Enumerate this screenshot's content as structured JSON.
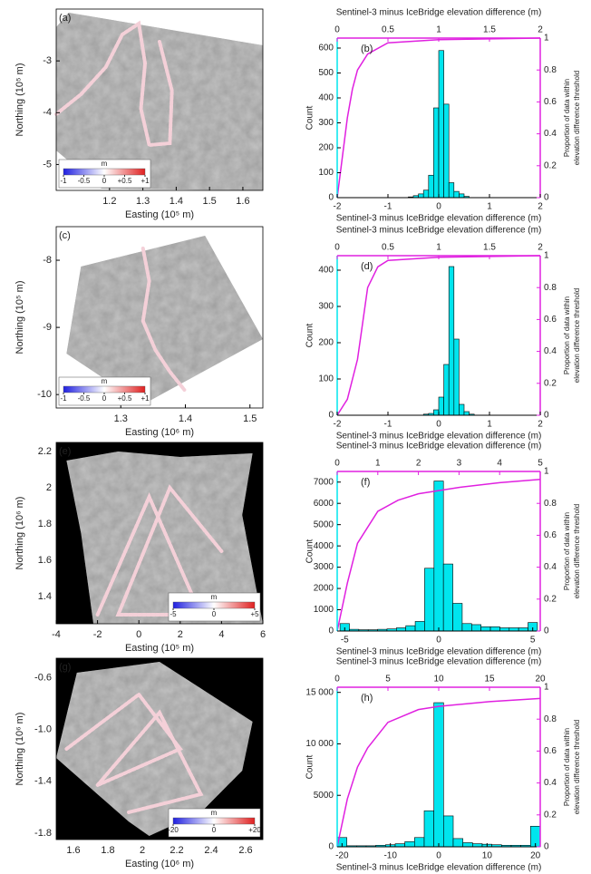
{
  "chart_data": [
    {
      "type": "map",
      "panel": "(a)",
      "xlabel": "Easting (10⁵ m)",
      "ylabel": "Northing (10⁵ m)",
      "background": "#ffffff",
      "xlim": [
        1.04,
        1.66
      ],
      "xticks": [
        1.2,
        1.3,
        1.4,
        1.5,
        1.6
      ],
      "ylim": [
        -5.5,
        -2.0
      ],
      "yticks": [
        -5,
        -4,
        -3
      ],
      "colorbar": {
        "title": "m",
        "lim": [
          -1,
          1
        ],
        "corner": "lower left",
        "ticks": [
          -1,
          -0.5,
          0,
          {
            "value": 0.5,
            "label": "+0.5"
          },
          {
            "value": 1,
            "label": "+1"
          }
        ]
      }
    },
    {
      "type": "histogram",
      "panel": "(b)",
      "title": "Sentinel-3 minus IceBridge elevation difference (m)",
      "xlabel": "Sentinel-3 minus IceBridge elevation difference (m)",
      "ylabel": "Count",
      "y2label": [
        "Proportion of data within",
        "elevation difference threshold"
      ],
      "xlim": [
        -2,
        2
      ],
      "xticks": [
        -2,
        -1,
        0,
        1,
        2
      ],
      "x2lim": [
        0,
        2
      ],
      "x2ticks": [
        0,
        0.5,
        1,
        1.5,
        2
      ],
      "ylim": [
        0,
        640
      ],
      "yticks": [
        0,
        100,
        200,
        300,
        400,
        500,
        600
      ],
      "y2lim": [
        0,
        1
      ],
      "y2ticks": [
        0,
        0.2,
        0.4,
        0.6,
        0.8,
        1
      ],
      "color": "#00e5ee",
      "bins": [
        -0.6,
        -0.5,
        -0.4,
        -0.3,
        -0.2,
        -0.1,
        0,
        0.1,
        0.2,
        0.3,
        0.4,
        0.5,
        0.6
      ],
      "counts": [
        3,
        8,
        15,
        30,
        90,
        360,
        590,
        375,
        60,
        25,
        15,
        5
      ],
      "curve": {
        "color": "#e020e0",
        "x": [
          0,
          0.05,
          0.1,
          0.15,
          0.2,
          0.3,
          0.5,
          1,
          2
        ],
        "y": [
          0,
          0.25,
          0.5,
          0.68,
          0.8,
          0.9,
          0.97,
          0.99,
          1
        ]
      }
    },
    {
      "type": "map",
      "panel": "(c)",
      "xlabel": "Easting (10⁶ m)",
      "ylabel": "Northing (10⁵ m)",
      "background": "#ffffff",
      "xlim": [
        1.2,
        1.52
      ],
      "xticks": [
        1.3,
        1.4,
        1.5
      ],
      "ylim": [
        -10.2,
        -7.5
      ],
      "yticks": [
        -10,
        -9,
        -8
      ],
      "colorbar": {
        "title": "m",
        "lim": [
          -1,
          1
        ],
        "corner": "lower left",
        "ticks": [
          -1,
          -0.5,
          0,
          {
            "value": 0.5,
            "label": "+0.5"
          },
          {
            "value": 1,
            "label": "+1"
          }
        ]
      }
    },
    {
      "type": "histogram",
      "panel": "(d)",
      "title": "Sentinel-3 minus IceBridge elevation difference (m)",
      "xlabel": "Sentinel-3 minus IceBridge elevation difference (m)",
      "ylabel": "Count",
      "y2label": [
        "Proportion of data within",
        "elevation difference threshold"
      ],
      "xlim": [
        -2,
        2
      ],
      "xticks": [
        -2,
        -1,
        0,
        1,
        2
      ],
      "x2lim": [
        0,
        2
      ],
      "x2ticks": [
        0,
        0.5,
        1,
        1.5,
        2
      ],
      "ylim": [
        0,
        440
      ],
      "yticks": [
        0,
        100,
        200,
        300,
        400
      ],
      "y2lim": [
        0,
        1
      ],
      "y2ticks": [
        0,
        0.2,
        0.4,
        0.6,
        0.8,
        1
      ],
      "color": "#00e5ee",
      "bins": [
        -0.3,
        -0.2,
        -0.1,
        0,
        0.1,
        0.2,
        0.3,
        0.4,
        0.5,
        0.6,
        0.7
      ],
      "counts": [
        3,
        5,
        15,
        50,
        140,
        410,
        210,
        30,
        10,
        3
      ],
      "curve": {
        "color": "#e020e0",
        "x": [
          0,
          0.1,
          0.2,
          0.3,
          0.4,
          0.5,
          1,
          2
        ],
        "y": [
          0,
          0.1,
          0.35,
          0.8,
          0.93,
          0.97,
          0.99,
          1
        ]
      }
    },
    {
      "type": "map",
      "panel": "(e)",
      "xlabel": "Easting (10⁵ m)",
      "ylabel": "Northing (10⁶ m)",
      "background": "#000000",
      "xlim": [
        -4,
        6
      ],
      "xticks": [
        -4,
        -2,
        0,
        2,
        4,
        6
      ],
      "ylim": [
        1.25,
        2.25
      ],
      "yticks": [
        1.4,
        1.6,
        1.8,
        2,
        2.2
      ],
      "colorbar": {
        "title": "m",
        "lim": [
          -5,
          5
        ],
        "corner": "lower right",
        "ticks": [
          -5,
          0,
          {
            "value": 5,
            "label": "+5"
          }
        ]
      }
    },
    {
      "type": "histogram",
      "panel": "(f)",
      "title": "Sentinel-3 minus IceBridge elevation difference (m)",
      "xlabel": "Sentinel-3 minus IceBridge elevation difference (m)",
      "ylabel": "Count",
      "y2label": [
        "Proportion of data within",
        "elevation difference threshold"
      ],
      "xlim": [
        -5.4,
        5.4
      ],
      "xticks": [
        -5,
        0,
        5
      ],
      "x2lim": [
        0,
        5
      ],
      "x2ticks": [
        0,
        1,
        2,
        3,
        4,
        5
      ],
      "ylim": [
        0,
        7500
      ],
      "yticks": [
        0,
        1000,
        2000,
        3000,
        4000,
        5000,
        6000,
        7000
      ],
      "y2lim": [
        0,
        1
      ],
      "y2ticks": [
        0,
        0.2,
        0.4,
        0.6,
        0.8,
        1
      ],
      "color": "#00e5ee",
      "bins": [
        -5.25,
        -4.75,
        -4.25,
        -3.75,
        -3.25,
        -2.75,
        -2.25,
        -1.75,
        -1.25,
        -0.75,
        -0.25,
        0.25,
        0.75,
        1.25,
        1.75,
        2.25,
        2.75,
        3.25,
        3.75,
        4.25,
        4.75,
        5.25
      ],
      "counts": [
        350,
        80,
        60,
        60,
        80,
        100,
        150,
        250,
        450,
        2950,
        7050,
        3150,
        1300,
        350,
        300,
        200,
        200,
        150,
        150,
        150,
        400
      ],
      "curve": {
        "color": "#e020e0",
        "x": [
          0,
          0.25,
          0.5,
          1,
          1.5,
          2,
          3,
          4,
          5
        ],
        "y": [
          0,
          0.3,
          0.55,
          0.75,
          0.82,
          0.86,
          0.9,
          0.93,
          0.95
        ]
      }
    },
    {
      "type": "map",
      "panel": "(g)",
      "xlabel": "Easting (10⁶ m)",
      "ylabel": "Northing (10⁶ m)",
      "background": "#000000",
      "xlim": [
        1.5,
        2.7
      ],
      "xticks": [
        1.6,
        1.8,
        2,
        2.2,
        2.4,
        2.6
      ],
      "ylim": [
        -1.85,
        -0.45
      ],
      "yticks": [
        -1.8,
        -1.4,
        {
          "value": -1,
          "label": "-1.0"
        },
        -0.6
      ],
      "colorbar": {
        "title": "m",
        "lim": [
          -20,
          20
        ],
        "corner": "lower right",
        "ticks": [
          -20,
          0,
          {
            "value": 20,
            "label": "+20"
          }
        ]
      }
    },
    {
      "type": "histogram",
      "panel": "(h)",
      "title": "Sentinel-3 minus IceBridge elevation difference (m)",
      "xlabel": "Sentinel-3 minus IceBridge elevation difference (m)",
      "ylabel": "Count",
      "y2label": [
        "Proportion of data within",
        "elevation difference threshold"
      ],
      "xlim": [
        -21,
        21
      ],
      "xticks": [
        -20,
        -10,
        0,
        10,
        20
      ],
      "x2lim": [
        0,
        20
      ],
      "x2ticks": [
        0,
        5,
        10,
        15,
        20
      ],
      "ylim": [
        0,
        15500
      ],
      "yticks": [
        0,
        5000,
        {
          "value": 10000,
          "label": "10 000"
        },
        {
          "value": 15000,
          "label": "15 000"
        }
      ],
      "y2lim": [
        0,
        1
      ],
      "y2ticks": [
        0,
        0.2,
        0.4,
        0.6,
        0.8,
        1
      ],
      "color": "#00e5ee",
      "bins": [
        -21,
        -19,
        -17,
        -15,
        -13,
        -11,
        -9,
        -7,
        -5,
        -3,
        -1,
        1,
        3,
        5,
        7,
        9,
        11,
        13,
        15,
        17,
        19,
        21
      ],
      "counts": [
        900,
        100,
        100,
        100,
        150,
        200,
        300,
        500,
        900,
        3500,
        14000,
        3000,
        800,
        400,
        300,
        250,
        200,
        150,
        150,
        150,
        2000
      ],
      "curve": {
        "color": "#e020e0",
        "x": [
          0,
          1,
          2,
          3,
          5,
          8,
          10,
          15,
          20
        ],
        "y": [
          0,
          0.3,
          0.5,
          0.62,
          0.78,
          0.86,
          0.88,
          0.91,
          0.93
        ]
      }
    }
  ]
}
